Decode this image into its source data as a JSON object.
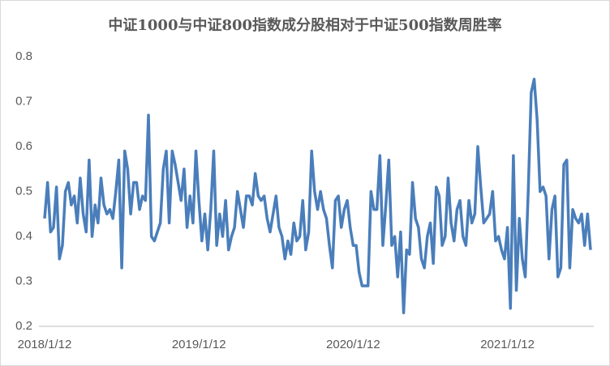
{
  "chart_data": {
    "type": "line",
    "title": "中证1000与中证800指数成分股相对于中证500指数周胜率",
    "categories": [
      "2018/1/12",
      null,
      null,
      null,
      null,
      null,
      null,
      null,
      null,
      null,
      null,
      null,
      null,
      null,
      null,
      null,
      null,
      null,
      null,
      null,
      null,
      null,
      null,
      null,
      null,
      null,
      null,
      null,
      null,
      null,
      null,
      null,
      null,
      null,
      null,
      null,
      null,
      null,
      null,
      null,
      null,
      null,
      null,
      null,
      null,
      null,
      null,
      null,
      null,
      null,
      null,
      null,
      "2019/1/12",
      null,
      null,
      null,
      null,
      null,
      null,
      null,
      null,
      null,
      null,
      null,
      null,
      null,
      null,
      null,
      null,
      null,
      null,
      null,
      null,
      null,
      null,
      null,
      null,
      null,
      null,
      null,
      null,
      null,
      null,
      null,
      null,
      null,
      null,
      null,
      null,
      null,
      null,
      null,
      null,
      null,
      null,
      null,
      null,
      null,
      null,
      null,
      null,
      null,
      null,
      null,
      "2020/1/12",
      null,
      null,
      null,
      null,
      null,
      null,
      null,
      null,
      null,
      null,
      null,
      null,
      null,
      null,
      null,
      null,
      null,
      null,
      null,
      null,
      null,
      null,
      null,
      null,
      null,
      null,
      null,
      null,
      null,
      null,
      null,
      null,
      null,
      null,
      null,
      null,
      null,
      null,
      null,
      null,
      null,
      null,
      null,
      null,
      null,
      null,
      null,
      null,
      null,
      null,
      null,
      "2021/1/12",
      null,
      null,
      null,
      null,
      null,
      null,
      null,
      null,
      null,
      null,
      null,
      null,
      null,
      null,
      null,
      null,
      null,
      null,
      null,
      null,
      null,
      null,
      null,
      null,
      null,
      null,
      null,
      null
    ],
    "series": [
      {
        "name": "周胜率",
        "color": "#4a7ebb",
        "values": [
          0.44,
          0.52,
          0.41,
          0.42,
          0.51,
          0.35,
          0.38,
          0.5,
          0.52,
          0.47,
          0.49,
          0.43,
          0.53,
          0.45,
          0.41,
          0.57,
          0.4,
          0.47,
          0.43,
          0.53,
          0.47,
          0.45,
          0.46,
          0.44,
          0.5,
          0.57,
          0.33,
          0.59,
          0.55,
          0.45,
          0.52,
          0.52,
          0.46,
          0.49,
          0.48,
          0.67,
          0.4,
          0.39,
          0.41,
          0.43,
          0.55,
          0.59,
          0.43,
          0.59,
          0.56,
          0.52,
          0.48,
          0.55,
          0.42,
          0.49,
          0.43,
          0.59,
          0.48,
          0.39,
          0.45,
          0.37,
          0.46,
          0.59,
          0.38,
          0.45,
          0.4,
          0.48,
          0.37,
          0.4,
          0.42,
          0.5,
          0.46,
          0.42,
          0.49,
          0.49,
          0.47,
          0.54,
          0.49,
          0.48,
          0.49,
          0.44,
          0.41,
          0.45,
          0.49,
          0.42,
          0.4,
          0.35,
          0.39,
          0.36,
          0.43,
          0.39,
          0.4,
          0.48,
          0.37,
          0.41,
          0.59,
          0.5,
          0.46,
          0.5,
          0.46,
          0.44,
          0.38,
          0.33,
          0.48,
          0.49,
          0.42,
          0.46,
          0.48,
          0.42,
          0.38,
          0.38,
          0.32,
          0.29,
          0.29,
          0.29,
          0.5,
          0.46,
          0.46,
          0.58,
          0.38,
          0.47,
          0.57,
          0.38,
          0.4,
          0.31,
          0.41,
          0.23,
          0.37,
          0.36,
          0.52,
          0.44,
          0.42,
          0.35,
          0.33,
          0.4,
          0.43,
          0.34,
          0.51,
          0.49,
          0.38,
          0.4,
          0.53,
          0.43,
          0.39,
          0.46,
          0.48,
          0.4,
          0.38,
          0.48,
          0.43,
          0.45,
          0.6,
          0.51,
          0.43,
          0.44,
          0.45,
          0.5,
          0.39,
          0.4,
          0.37,
          0.35,
          0.42,
          0.24,
          0.58,
          0.28,
          0.44,
          0.35,
          0.31,
          0.5,
          0.72,
          0.75,
          0.66,
          0.5,
          0.51,
          0.49,
          0.35,
          0.46,
          0.49,
          0.31,
          0.33,
          0.56,
          0.57,
          0.33,
          0.46,
          0.44,
          0.43,
          0.45,
          0.38,
          0.45,
          0.37
        ]
      }
    ],
    "ylim": [
      0.2,
      0.8
    ],
    "yticks": [
      0.2,
      0.3,
      0.4,
      0.5,
      0.6,
      0.7,
      0.8
    ],
    "grid": false
  }
}
